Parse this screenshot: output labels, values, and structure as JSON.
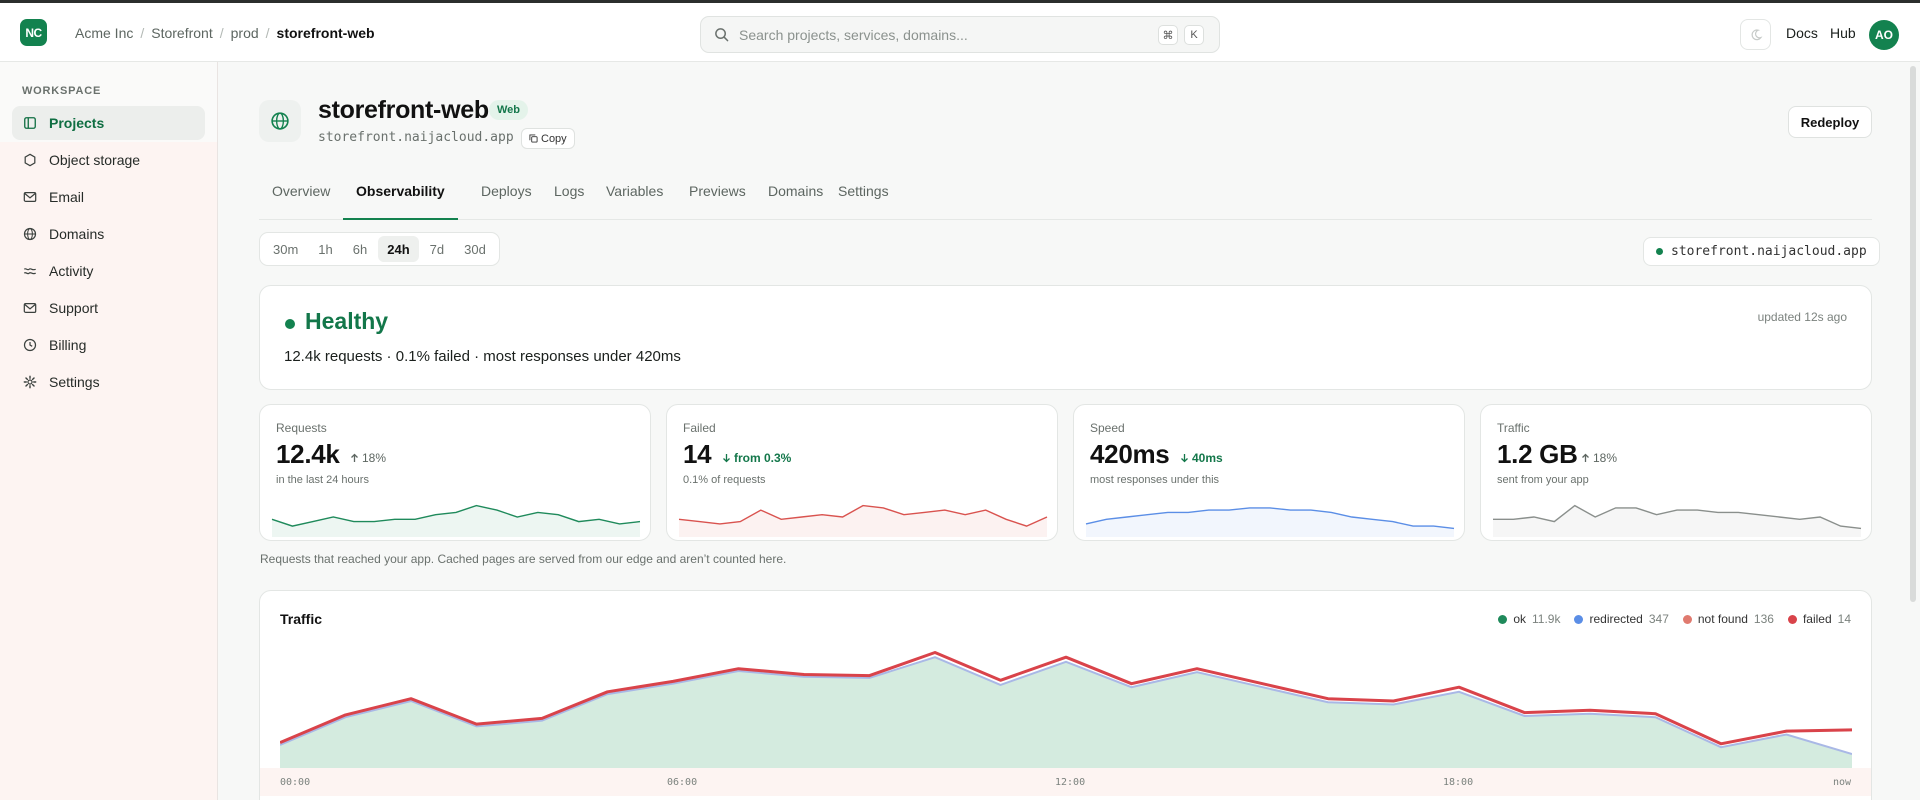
{
  "header": {
    "logo_text": "NC",
    "breadcrumbs": [
      "Acme Inc",
      "Storefront",
      "prod",
      "storefront-web"
    ],
    "search_placeholder": "Search projects, services, domains...",
    "kbd": [
      "⌘",
      "K"
    ],
    "links": [
      "Docs",
      "Hub"
    ],
    "avatar": "AO"
  },
  "sidebar": {
    "section": "WORKSPACE",
    "items": [
      {
        "label": "Projects",
        "icon": "folder-icon",
        "active": true
      },
      {
        "label": "Object storage",
        "icon": "box-icon"
      },
      {
        "label": "Email",
        "icon": "mail-icon"
      },
      {
        "label": "Domains",
        "icon": "globe-icon"
      },
      {
        "label": "Activity",
        "icon": "activity-icon"
      },
      {
        "label": "Support",
        "icon": "mail-icon"
      },
      {
        "label": "Billing",
        "icon": "clock-icon"
      },
      {
        "label": "Settings",
        "icon": "gear-icon"
      }
    ]
  },
  "project": {
    "title": "storefront-web",
    "badge": "Web",
    "domain": "storefront.naijacloud.app",
    "copy_label": "Copy",
    "redeploy_label": "Redeploy"
  },
  "tabs": [
    "Overview",
    "Observability",
    "Deploys",
    "Logs",
    "Variables",
    "Previews",
    "Domains",
    "Settings"
  ],
  "active_tab": "Observability",
  "ranges": [
    "30m",
    "1h",
    "6h",
    "24h",
    "7d",
    "30d"
  ],
  "active_range": "24h",
  "domain_chip": "storefront.naijacloud.app",
  "health": {
    "status": "Healthy",
    "summary": "12.4k requests · 0.1% failed · most responses under 420ms",
    "updated": "updated 12s ago"
  },
  "cards": [
    {
      "label": "Requests",
      "value": "12.4k",
      "delta": "18%",
      "delta_dir": "up",
      "sub": "in the last 24 hours",
      "color": "#1f8a5b",
      "spark": [
        6,
        3,
        5,
        7,
        5,
        5,
        6,
        6,
        8,
        9,
        12,
        10,
        7,
        9,
        8,
        5,
        6,
        4,
        5
      ]
    },
    {
      "label": "Failed",
      "value": "14",
      "delta": "from 0.3%",
      "delta_dir": "down",
      "sub": "0.1% of requests",
      "color": "#d9534f",
      "spark": [
        6,
        5,
        4,
        5,
        10,
        6,
        7,
        8,
        7,
        12,
        11,
        8,
        9,
        10,
        8,
        10,
        6,
        3,
        7
      ]
    },
    {
      "label": "Speed",
      "value": "420ms",
      "delta": "40ms",
      "delta_dir": "down",
      "sub": "most responses under this",
      "color": "#5b8ee6",
      "spark": [
        4,
        6,
        7,
        8,
        9,
        9,
        10,
        10,
        11,
        11,
        10,
        10,
        9,
        7,
        6,
        5,
        3,
        3,
        2
      ]
    },
    {
      "label": "Traffic",
      "value": "1.2 GB",
      "delta": "18%",
      "delta_dir": "up",
      "sub": "sent from your app",
      "color": "#8a8f8c",
      "spark": [
        6,
        6,
        7,
        5,
        12,
        7,
        11,
        11,
        8,
        10,
        10,
        9,
        9,
        8,
        7,
        6,
        7,
        3,
        2
      ]
    }
  ],
  "note": "Requests that reached your app. Cached pages are served from our edge and aren’t counted here.",
  "traffic": {
    "title": "Traffic",
    "legend": [
      {
        "name": "ok",
        "count": "11.9k",
        "color": "#1f8a5b"
      },
      {
        "name": "redirected",
        "count": "347",
        "color": "#5b8ee6"
      },
      {
        "name": "not found",
        "count": "136",
        "color": "#e07a6f"
      },
      {
        "name": "failed",
        "count": "14",
        "color": "#d9434a"
      }
    ],
    "x_ticks": [
      "00:00",
      "06:00",
      "12:00",
      "18:00",
      "now"
    ]
  },
  "chart_data": {
    "type": "area",
    "title": "Traffic",
    "x": [
      "00:00",
      "01:00",
      "02:00",
      "03:00",
      "04:00",
      "05:00",
      "06:00",
      "07:00",
      "08:00",
      "09:00",
      "10:00",
      "11:00",
      "12:00",
      "13:00",
      "14:00",
      "15:00",
      "16:00",
      "17:00",
      "18:00",
      "19:00",
      "20:00",
      "21:00",
      "22:00",
      "23:00",
      "now"
    ],
    "series": [
      {
        "name": "ok",
        "values": [
          20,
          44,
          58,
          36,
          41,
          64,
          73,
          84,
          79,
          78,
          96,
          72,
          92,
          70,
          83,
          70,
          57,
          55,
          66,
          45,
          47,
          44,
          18,
          29,
          12
        ]
      },
      {
        "name": "failed",
        "values": [
          22,
          46,
          60,
          38,
          43,
          66,
          75,
          86,
          81,
          80,
          100,
          76,
          96,
          73,
          86,
          73,
          60,
          58,
          70,
          48,
          50,
          47,
          21,
          32,
          33
        ]
      }
    ],
    "ylim": [
      0,
      110
    ],
    "grid": false,
    "legend": "top-right"
  }
}
